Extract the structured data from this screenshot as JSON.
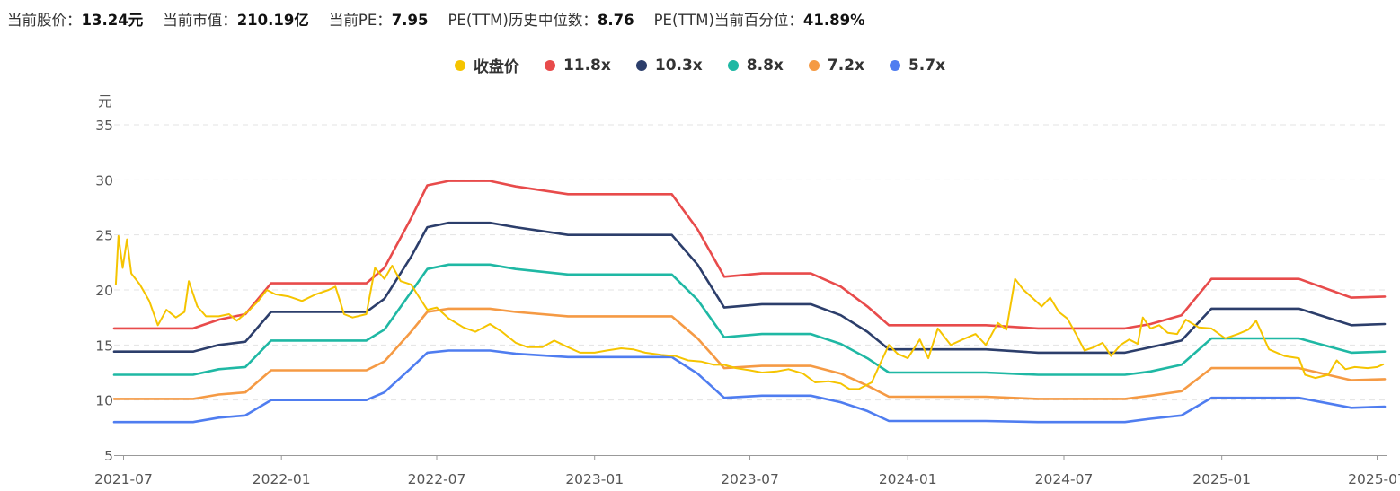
{
  "stats": [
    {
      "label": "当前股价：",
      "value": "13.24元"
    },
    {
      "label": "当前市值：",
      "value": "210.19亿"
    },
    {
      "label": "当前PE：",
      "value": "7.95"
    },
    {
      "label": "PE(TTM)历史中位数：",
      "value": "8.76"
    },
    {
      "label": "PE(TTM)当前百分位：",
      "value": "41.89%"
    }
  ],
  "chart_data": {
    "type": "line",
    "ylabel": "元",
    "ylim": [
      5,
      35
    ],
    "yticks": [
      5,
      10,
      15,
      20,
      25,
      30,
      35
    ],
    "xlim": [
      "2021-06-20",
      "2025-07-12"
    ],
    "xticks": [
      "2021-07",
      "2022-01",
      "2022-07",
      "2023-01",
      "2023-07",
      "2024-01",
      "2024-07",
      "2025-01",
      "2025-07"
    ],
    "grid": "horizontal dashed",
    "legend_position": "top-center",
    "series": [
      {
        "name": "收盘价",
        "color": "#f5c400",
        "points": [
          [
            "2021-06-22",
            20.5
          ],
          [
            "2021-06-25",
            24.9
          ],
          [
            "2021-06-30",
            22.0
          ],
          [
            "2021-07-05",
            24.6
          ],
          [
            "2021-07-10",
            21.5
          ],
          [
            "2021-07-20",
            20.5
          ],
          [
            "2021-07-31",
            19.0
          ],
          [
            "2021-08-10",
            16.8
          ],
          [
            "2021-08-20",
            18.2
          ],
          [
            "2021-08-31",
            17.5
          ],
          [
            "2021-09-10",
            18.0
          ],
          [
            "2021-09-15",
            20.8
          ],
          [
            "2021-09-25",
            18.5
          ],
          [
            "2021-10-05",
            17.6
          ],
          [
            "2021-10-20",
            17.6
          ],
          [
            "2021-11-01",
            17.8
          ],
          [
            "2021-11-10",
            17.2
          ],
          [
            "2021-11-25",
            18.2
          ],
          [
            "2021-12-05",
            19.0
          ],
          [
            "2021-12-15",
            20.0
          ],
          [
            "2021-12-25",
            19.6
          ],
          [
            "2022-01-10",
            19.4
          ],
          [
            "2022-01-25",
            19.0
          ],
          [
            "2022-02-10",
            19.6
          ],
          [
            "2022-02-25",
            20.0
          ],
          [
            "2022-03-05",
            20.3
          ],
          [
            "2022-03-15",
            17.8
          ],
          [
            "2022-03-25",
            17.5
          ],
          [
            "2022-04-10",
            17.8
          ],
          [
            "2022-04-20",
            22.0
          ],
          [
            "2022-05-01",
            21.0
          ],
          [
            "2022-05-10",
            22.2
          ],
          [
            "2022-05-20",
            20.8
          ],
          [
            "2022-06-01",
            20.5
          ],
          [
            "2022-06-10",
            19.4
          ],
          [
            "2022-06-20",
            18.2
          ],
          [
            "2022-07-01",
            18.4
          ],
          [
            "2022-07-15",
            17.4
          ],
          [
            "2022-08-01",
            16.6
          ],
          [
            "2022-08-15",
            16.2
          ],
          [
            "2022-09-01",
            16.9
          ],
          [
            "2022-09-15",
            16.2
          ],
          [
            "2022-10-01",
            15.2
          ],
          [
            "2022-10-15",
            14.8
          ],
          [
            "2022-11-01",
            14.8
          ],
          [
            "2022-11-15",
            15.4
          ],
          [
            "2022-12-01",
            14.8
          ],
          [
            "2022-12-15",
            14.3
          ],
          [
            "2023-01-01",
            14.3
          ],
          [
            "2023-01-15",
            14.5
          ],
          [
            "2023-02-01",
            14.7
          ],
          [
            "2023-02-15",
            14.6
          ],
          [
            "2023-03-01",
            14.3
          ],
          [
            "2023-03-20",
            14.1
          ],
          [
            "2023-04-05",
            14.0
          ],
          [
            "2023-04-20",
            13.6
          ],
          [
            "2023-05-05",
            13.5
          ],
          [
            "2023-05-20",
            13.2
          ],
          [
            "2023-06-01",
            13.2
          ],
          [
            "2023-06-15",
            12.9
          ],
          [
            "2023-07-01",
            12.7
          ],
          [
            "2023-07-15",
            12.5
          ],
          [
            "2023-08-01",
            12.6
          ],
          [
            "2023-08-15",
            12.8
          ],
          [
            "2023-09-01",
            12.4
          ],
          [
            "2023-09-15",
            11.6
          ],
          [
            "2023-10-01",
            11.7
          ],
          [
            "2023-10-15",
            11.5
          ],
          [
            "2023-10-25",
            11.0
          ],
          [
            "2023-11-05",
            11.0
          ],
          [
            "2023-11-20",
            11.6
          ],
          [
            "2023-12-01",
            13.5
          ],
          [
            "2023-12-10",
            15.0
          ],
          [
            "2023-12-20",
            14.2
          ],
          [
            "2024-01-01",
            13.8
          ],
          [
            "2024-01-15",
            15.5
          ],
          [
            "2024-01-25",
            13.8
          ],
          [
            "2024-02-05",
            16.5
          ],
          [
            "2024-02-20",
            15.0
          ],
          [
            "2024-03-05",
            15.5
          ],
          [
            "2024-03-20",
            16.0
          ],
          [
            "2024-04-01",
            15.0
          ],
          [
            "2024-04-15",
            17.0
          ],
          [
            "2024-04-25",
            16.4
          ],
          [
            "2024-05-05",
            21.0
          ],
          [
            "2024-05-15",
            20.0
          ],
          [
            "2024-05-25",
            19.3
          ],
          [
            "2024-06-05",
            18.5
          ],
          [
            "2024-06-15",
            19.3
          ],
          [
            "2024-06-25",
            18.0
          ],
          [
            "2024-07-05",
            17.4
          ],
          [
            "2024-07-15",
            16.0
          ],
          [
            "2024-07-25",
            14.5
          ],
          [
            "2024-08-05",
            14.8
          ],
          [
            "2024-08-15",
            15.2
          ],
          [
            "2024-08-25",
            14.0
          ],
          [
            "2024-09-05",
            15.0
          ],
          [
            "2024-09-15",
            15.5
          ],
          [
            "2024-09-25",
            15.1
          ],
          [
            "2024-10-01",
            17.5
          ],
          [
            "2024-10-10",
            16.5
          ],
          [
            "2024-10-20",
            16.8
          ],
          [
            "2024-10-30",
            16.1
          ],
          [
            "2024-11-10",
            16.0
          ],
          [
            "2024-11-20",
            17.3
          ],
          [
            "2024-12-05",
            16.6
          ],
          [
            "2024-12-20",
            16.5
          ],
          [
            "2025-01-05",
            15.6
          ],
          [
            "2025-01-20",
            16.0
          ],
          [
            "2025-02-01",
            16.4
          ],
          [
            "2025-02-10",
            17.2
          ],
          [
            "2025-02-25",
            14.6
          ],
          [
            "2025-03-15",
            14.0
          ],
          [
            "2025-04-01",
            13.8
          ],
          [
            "2025-04-08",
            12.3
          ],
          [
            "2025-04-20",
            12.0
          ],
          [
            "2025-05-05",
            12.3
          ],
          [
            "2025-05-15",
            13.6
          ],
          [
            "2025-05-25",
            12.8
          ],
          [
            "2025-06-05",
            13.0
          ],
          [
            "2025-06-20",
            12.9
          ],
          [
            "2025-07-01",
            13.0
          ],
          [
            "2025-07-08",
            13.24
          ]
        ]
      },
      {
        "name": "11.8x",
        "color": "#e84b4b",
        "points": [
          [
            "2021-06-20",
            16.5
          ],
          [
            "2021-09-20",
            16.5
          ],
          [
            "2021-10-20",
            17.3
          ],
          [
            "2021-11-20",
            17.8
          ],
          [
            "2021-12-20",
            20.6
          ],
          [
            "2022-04-10",
            20.6
          ],
          [
            "2022-05-01",
            22.0
          ],
          [
            "2022-06-01",
            26.5
          ],
          [
            "2022-06-20",
            29.5
          ],
          [
            "2022-07-15",
            29.9
          ],
          [
            "2022-09-01",
            29.9
          ],
          [
            "2022-10-01",
            29.4
          ],
          [
            "2022-12-01",
            28.7
          ],
          [
            "2023-04-01",
            28.7
          ],
          [
            "2023-05-01",
            25.5
          ],
          [
            "2023-06-01",
            21.2
          ],
          [
            "2023-07-15",
            21.5
          ],
          [
            "2023-09-10",
            21.5
          ],
          [
            "2023-10-15",
            20.3
          ],
          [
            "2023-11-15",
            18.5
          ],
          [
            "2023-12-10",
            16.8
          ],
          [
            "2024-04-01",
            16.8
          ],
          [
            "2024-06-01",
            16.5
          ],
          [
            "2024-09-10",
            16.5
          ],
          [
            "2024-10-10",
            16.9
          ],
          [
            "2024-11-15",
            17.7
          ],
          [
            "2024-12-20",
            21.0
          ],
          [
            "2025-04-01",
            21.0
          ],
          [
            "2025-06-01",
            19.3
          ],
          [
            "2025-07-10",
            19.4
          ]
        ]
      },
      {
        "name": "10.3x",
        "color": "#2c3e6b",
        "points": [
          [
            "2021-06-20",
            14.4
          ],
          [
            "2021-09-20",
            14.4
          ],
          [
            "2021-10-20",
            15.0
          ],
          [
            "2021-11-20",
            15.3
          ],
          [
            "2021-12-20",
            18.0
          ],
          [
            "2022-04-10",
            18.0
          ],
          [
            "2022-05-01",
            19.2
          ],
          [
            "2022-06-01",
            23.0
          ],
          [
            "2022-06-20",
            25.7
          ],
          [
            "2022-07-15",
            26.1
          ],
          [
            "2022-09-01",
            26.1
          ],
          [
            "2022-10-01",
            25.7
          ],
          [
            "2022-12-01",
            25.0
          ],
          [
            "2023-04-01",
            25.0
          ],
          [
            "2023-05-01",
            22.3
          ],
          [
            "2023-06-01",
            18.4
          ],
          [
            "2023-07-15",
            18.7
          ],
          [
            "2023-09-10",
            18.7
          ],
          [
            "2023-10-15",
            17.7
          ],
          [
            "2023-11-15",
            16.2
          ],
          [
            "2023-12-10",
            14.6
          ],
          [
            "2024-04-01",
            14.6
          ],
          [
            "2024-06-01",
            14.3
          ],
          [
            "2024-09-10",
            14.3
          ],
          [
            "2024-10-10",
            14.8
          ],
          [
            "2024-11-15",
            15.4
          ],
          [
            "2024-12-20",
            18.3
          ],
          [
            "2025-04-01",
            18.3
          ],
          [
            "2025-06-01",
            16.8
          ],
          [
            "2025-07-10",
            16.9
          ]
        ]
      },
      {
        "name": "8.8x",
        "color": "#1fb8a4",
        "points": [
          [
            "2021-06-20",
            12.3
          ],
          [
            "2021-09-20",
            12.3
          ],
          [
            "2021-10-20",
            12.8
          ],
          [
            "2021-11-20",
            13.0
          ],
          [
            "2021-12-20",
            15.4
          ],
          [
            "2022-04-10",
            15.4
          ],
          [
            "2022-05-01",
            16.4
          ],
          [
            "2022-06-01",
            19.8
          ],
          [
            "2022-06-20",
            21.9
          ],
          [
            "2022-07-15",
            22.3
          ],
          [
            "2022-09-01",
            22.3
          ],
          [
            "2022-10-01",
            21.9
          ],
          [
            "2022-12-01",
            21.4
          ],
          [
            "2023-04-01",
            21.4
          ],
          [
            "2023-05-01",
            19.1
          ],
          [
            "2023-06-01",
            15.7
          ],
          [
            "2023-07-15",
            16.0
          ],
          [
            "2023-09-10",
            16.0
          ],
          [
            "2023-10-15",
            15.1
          ],
          [
            "2023-11-15",
            13.8
          ],
          [
            "2023-12-10",
            12.5
          ],
          [
            "2024-04-01",
            12.5
          ],
          [
            "2024-06-01",
            12.3
          ],
          [
            "2024-09-10",
            12.3
          ],
          [
            "2024-10-10",
            12.6
          ],
          [
            "2024-11-15",
            13.2
          ],
          [
            "2024-12-20",
            15.6
          ],
          [
            "2025-04-01",
            15.6
          ],
          [
            "2025-06-01",
            14.3
          ],
          [
            "2025-07-10",
            14.4
          ]
        ]
      },
      {
        "name": "7.2x",
        "color": "#f59a44",
        "points": [
          [
            "2021-06-20",
            10.1
          ],
          [
            "2021-09-20",
            10.1
          ],
          [
            "2021-10-20",
            10.5
          ],
          [
            "2021-11-20",
            10.7
          ],
          [
            "2021-12-20",
            12.7
          ],
          [
            "2022-04-10",
            12.7
          ],
          [
            "2022-05-01",
            13.5
          ],
          [
            "2022-06-01",
            16.2
          ],
          [
            "2022-06-20",
            18.0
          ],
          [
            "2022-07-15",
            18.3
          ],
          [
            "2022-09-01",
            18.3
          ],
          [
            "2022-10-01",
            18.0
          ],
          [
            "2022-12-01",
            17.6
          ],
          [
            "2023-04-01",
            17.6
          ],
          [
            "2023-05-01",
            15.6
          ],
          [
            "2023-06-01",
            12.9
          ],
          [
            "2023-07-15",
            13.1
          ],
          [
            "2023-09-10",
            13.1
          ],
          [
            "2023-10-15",
            12.4
          ],
          [
            "2023-11-15",
            11.3
          ],
          [
            "2023-12-10",
            10.3
          ],
          [
            "2024-04-01",
            10.3
          ],
          [
            "2024-06-01",
            10.1
          ],
          [
            "2024-09-10",
            10.1
          ],
          [
            "2024-10-10",
            10.4
          ],
          [
            "2024-11-15",
            10.8
          ],
          [
            "2024-12-20",
            12.9
          ],
          [
            "2025-04-01",
            12.9
          ],
          [
            "2025-06-01",
            11.8
          ],
          [
            "2025-07-10",
            11.9
          ]
        ]
      },
      {
        "name": "5.7x",
        "color": "#4f7df0",
        "points": [
          [
            "2021-06-20",
            8.0
          ],
          [
            "2021-09-20",
            8.0
          ],
          [
            "2021-10-20",
            8.4
          ],
          [
            "2021-11-20",
            8.6
          ],
          [
            "2021-12-20",
            10.0
          ],
          [
            "2022-04-10",
            10.0
          ],
          [
            "2022-05-01",
            10.7
          ],
          [
            "2022-06-01",
            12.9
          ],
          [
            "2022-06-20",
            14.3
          ],
          [
            "2022-07-15",
            14.5
          ],
          [
            "2022-09-01",
            14.5
          ],
          [
            "2022-10-01",
            14.2
          ],
          [
            "2022-12-01",
            13.9
          ],
          [
            "2023-04-01",
            13.9
          ],
          [
            "2023-05-01",
            12.4
          ],
          [
            "2023-06-01",
            10.2
          ],
          [
            "2023-07-15",
            10.4
          ],
          [
            "2023-09-10",
            10.4
          ],
          [
            "2023-10-15",
            9.8
          ],
          [
            "2023-11-15",
            9.0
          ],
          [
            "2023-12-10",
            8.1
          ],
          [
            "2024-04-01",
            8.1
          ],
          [
            "2024-06-01",
            8.0
          ],
          [
            "2024-09-10",
            8.0
          ],
          [
            "2024-10-10",
            8.3
          ],
          [
            "2024-11-15",
            8.6
          ],
          [
            "2024-12-20",
            10.2
          ],
          [
            "2025-04-01",
            10.2
          ],
          [
            "2025-06-01",
            9.3
          ],
          [
            "2025-07-10",
            9.4
          ]
        ]
      }
    ]
  }
}
